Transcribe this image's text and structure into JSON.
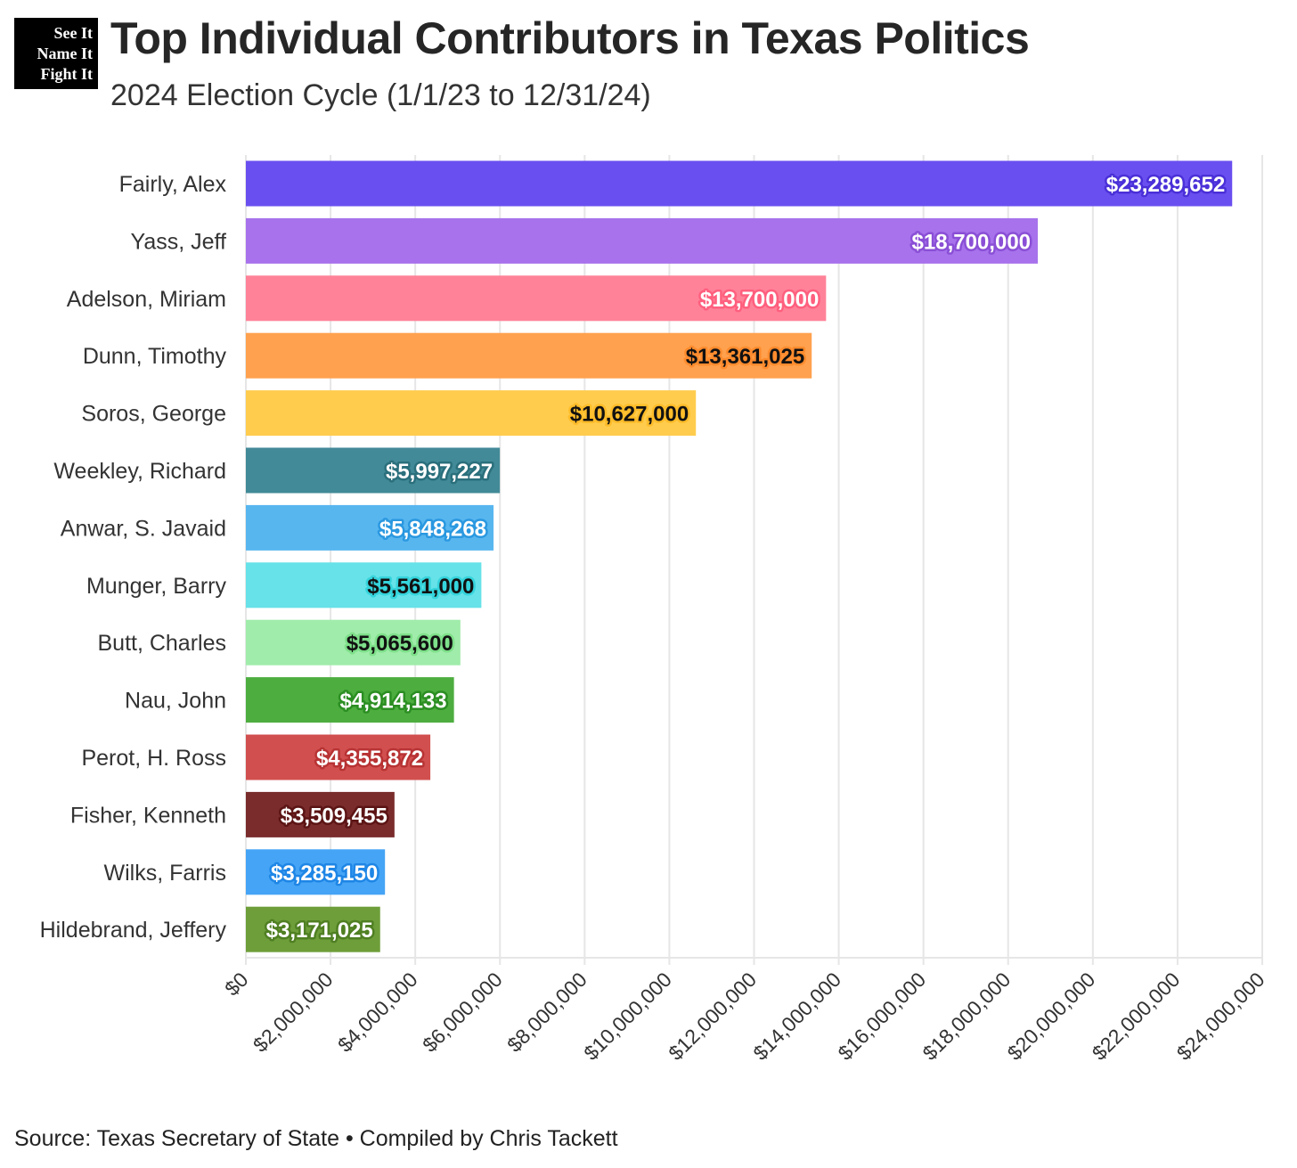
{
  "logo": {
    "lines": [
      "See It",
      "Name It",
      "Fight It"
    ]
  },
  "header": {
    "title": "Top Individual Contributors in Texas Politics",
    "subtitle": "2024 Election Cycle (1/1/23 to 12/31/24)"
  },
  "footer": {
    "source": "Source: Texas Secretary of State • Compiled by Chris Tackett"
  },
  "chart_data": {
    "type": "bar",
    "orientation": "horizontal",
    "title": "Top Individual Contributors in Texas Politics",
    "subtitle": "2024 Election Cycle (1/1/23 to 12/31/24)",
    "xlabel": "",
    "ylabel": "",
    "xlim": [
      0,
      24000000
    ],
    "grid": true,
    "legend": "none",
    "categories": [
      "Fairly, Alex",
      "Yass, Jeff",
      "Adelson, Miriam",
      "Dunn, Timothy",
      "Soros, George",
      "Weekley, Richard",
      "Anwar, S. Javaid",
      "Munger, Barry",
      "Butt, Charles",
      "Nau, John",
      "Perot, H. Ross",
      "Fisher, Kenneth",
      "Wilks, Farris",
      "Hildebrand, Jeffery"
    ],
    "values": [
      23289652,
      18700000,
      13700000,
      13361025,
      10627000,
      5997227,
      5848268,
      5561000,
      5065600,
      4914133,
      4355872,
      3509455,
      3285150,
      3171025
    ],
    "value_labels": [
      "$23,289,652",
      "$18,700,000",
      "$13,700,000",
      "$13,361,025",
      "$10,627,000",
      "$5,997,227",
      "$5,848,268",
      "$5,561,000",
      "$5,065,600",
      "$4,914,133",
      "$4,355,872",
      "$3,509,455",
      "$3,285,150",
      "$3,171,025"
    ],
    "bar_colors": [
      "#6a4ff0",
      "#a772ec",
      "#ff8299",
      "#ffa14e",
      "#ffcc4e",
      "#428a97",
      "#58b6ef",
      "#66e2e8",
      "#a0ecaa",
      "#4dae3f",
      "#d14f4e",
      "#7a2c2c",
      "#45a4f5",
      "#6e9e3a"
    ],
    "label_text_colors": [
      "#ffffff",
      "#ffffff",
      "#ffffff",
      "#111111",
      "#111111",
      "#ffffff",
      "#ffffff",
      "#111111",
      "#111111",
      "#ffffff",
      "#ffffff",
      "#ffffff",
      "#ffffff",
      "#ffffff"
    ],
    "label_halo_colors": [
      "#4a30d8",
      "#8a4fd6",
      "#ff5f7e",
      "#ff8c2e",
      "#ffbd2a",
      "#2a6f7c",
      "#2a98e0",
      "#35d4dc",
      "#7ee08a",
      "#2b8e22",
      "#b83334",
      "#5c1414",
      "#1e86e6",
      "#4f7f22"
    ],
    "xticks": [
      0,
      2000000,
      4000000,
      6000000,
      8000000,
      10000000,
      12000000,
      14000000,
      16000000,
      18000000,
      20000000,
      22000000,
      24000000
    ],
    "xtick_labels": [
      "$0",
      "$2,000,000",
      "$4,000,000",
      "$6,000,000",
      "$8,000,000",
      "$10,000,000",
      "$12,000,000",
      "$14,000,000",
      "$16,000,000",
      "$18,000,000",
      "$20,000,000",
      "$22,000,000",
      "$24,000,000"
    ]
  }
}
